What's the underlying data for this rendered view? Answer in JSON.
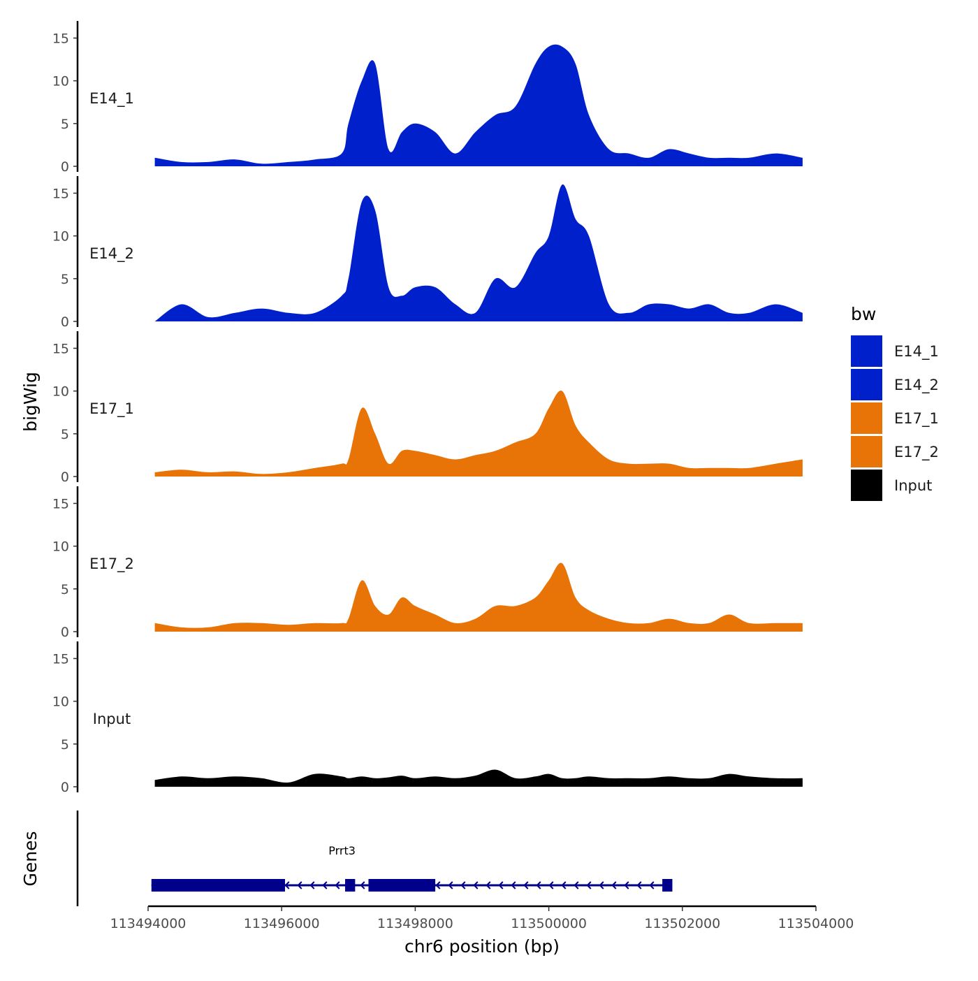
{
  "chart_data": {
    "type": "area",
    "ylabel": "bigWig",
    "xlabel": "chr6 position (bp)",
    "gene_track_label": "Genes",
    "ylim": [
      0,
      17
    ],
    "yticks": [
      0,
      5,
      10,
      15
    ],
    "xlim": [
      113494000,
      113504000
    ],
    "xticks": [
      113494000,
      113496000,
      113498000,
      113500000,
      113502000,
      113504000
    ],
    "x": [
      113494100,
      113494500,
      113494900,
      113495300,
      113495700,
      113496100,
      113496500,
      113496900,
      113497000,
      113497200,
      113497400,
      113497600,
      113497800,
      113498000,
      113498300,
      113498600,
      113498900,
      113499200,
      113499500,
      113499800,
      113500000,
      113500200,
      113500400,
      113500600,
      113500900,
      113501200,
      113501500,
      113501800,
      113502100,
      113502400,
      113502700,
      113503000,
      113503400,
      113503800
    ],
    "legend": {
      "title": "bw",
      "entries": [
        {
          "label": "E14_1",
          "color": "#0020CC"
        },
        {
          "label": "E14_2",
          "color": "#0020CC"
        },
        {
          "label": "E17_1",
          "color": "#E87306"
        },
        {
          "label": "E17_2",
          "color": "#E87306"
        },
        {
          "label": "Input",
          "color": "#000000"
        }
      ]
    },
    "series": [
      {
        "name": "E14_1",
        "color": "#0020CC",
        "values": [
          1,
          0.5,
          0.5,
          0.8,
          0.3,
          0.5,
          0.8,
          1.5,
          5,
          10,
          12,
          2,
          4,
          5,
          4,
          1.5,
          4,
          6,
          7,
          12,
          14,
          14,
          12,
          6,
          2,
          1.5,
          1,
          2,
          1.5,
          1,
          1,
          1,
          1.5,
          1
        ]
      },
      {
        "name": "E14_2",
        "color": "#0020CC",
        "values": [
          0,
          2,
          0.5,
          1,
          1.5,
          1,
          1,
          3,
          5,
          14,
          13,
          4,
          3,
          4,
          4,
          2,
          1,
          5,
          4,
          8,
          10,
          16,
          12,
          10,
          2,
          1,
          2,
          2,
          1.5,
          2,
          1,
          1,
          2,
          1
        ]
      },
      {
        "name": "E17_1",
        "color": "#E87306",
        "values": [
          0.5,
          0.8,
          0.5,
          0.6,
          0.3,
          0.5,
          1,
          1.5,
          2,
          8,
          5,
          1.5,
          3,
          3,
          2.5,
          2,
          2.5,
          3,
          4,
          5,
          8,
          10,
          6,
          4,
          2,
          1.5,
          1.5,
          1.5,
          1,
          1,
          1,
          1,
          1.5,
          2
        ]
      },
      {
        "name": "E17_2",
        "color": "#E87306",
        "values": [
          1,
          0.5,
          0.5,
          1,
          1,
          0.8,
          1,
          1,
          1.5,
          6,
          3,
          2,
          4,
          3,
          2,
          1,
          1.5,
          3,
          3,
          4,
          6,
          8,
          4,
          2.5,
          1.5,
          1,
          1,
          1.5,
          1,
          1,
          2,
          1,
          1,
          1
        ]
      },
      {
        "name": "Input",
        "color": "#000000",
        "values": [
          0.8,
          1.2,
          1,
          1.2,
          1,
          0.5,
          1.5,
          1.2,
          1,
          1.2,
          1,
          1.1,
          1.3,
          1,
          1.2,
          1,
          1.3,
          2,
          1,
          1.2,
          1.5,
          1,
          1,
          1.2,
          1,
          1,
          1,
          1.2,
          1,
          1,
          1.5,
          1.2,
          1,
          1
        ]
      }
    ],
    "gene": {
      "name": "Prrt3",
      "strand": "-",
      "color": "#00008B",
      "start": 113494050,
      "end": 113501850,
      "exons": [
        [
          113494050,
          113496050
        ],
        [
          113496950,
          113497100
        ],
        [
          113497300,
          113498300
        ],
        [
          113501700,
          113501850
        ]
      ]
    }
  }
}
